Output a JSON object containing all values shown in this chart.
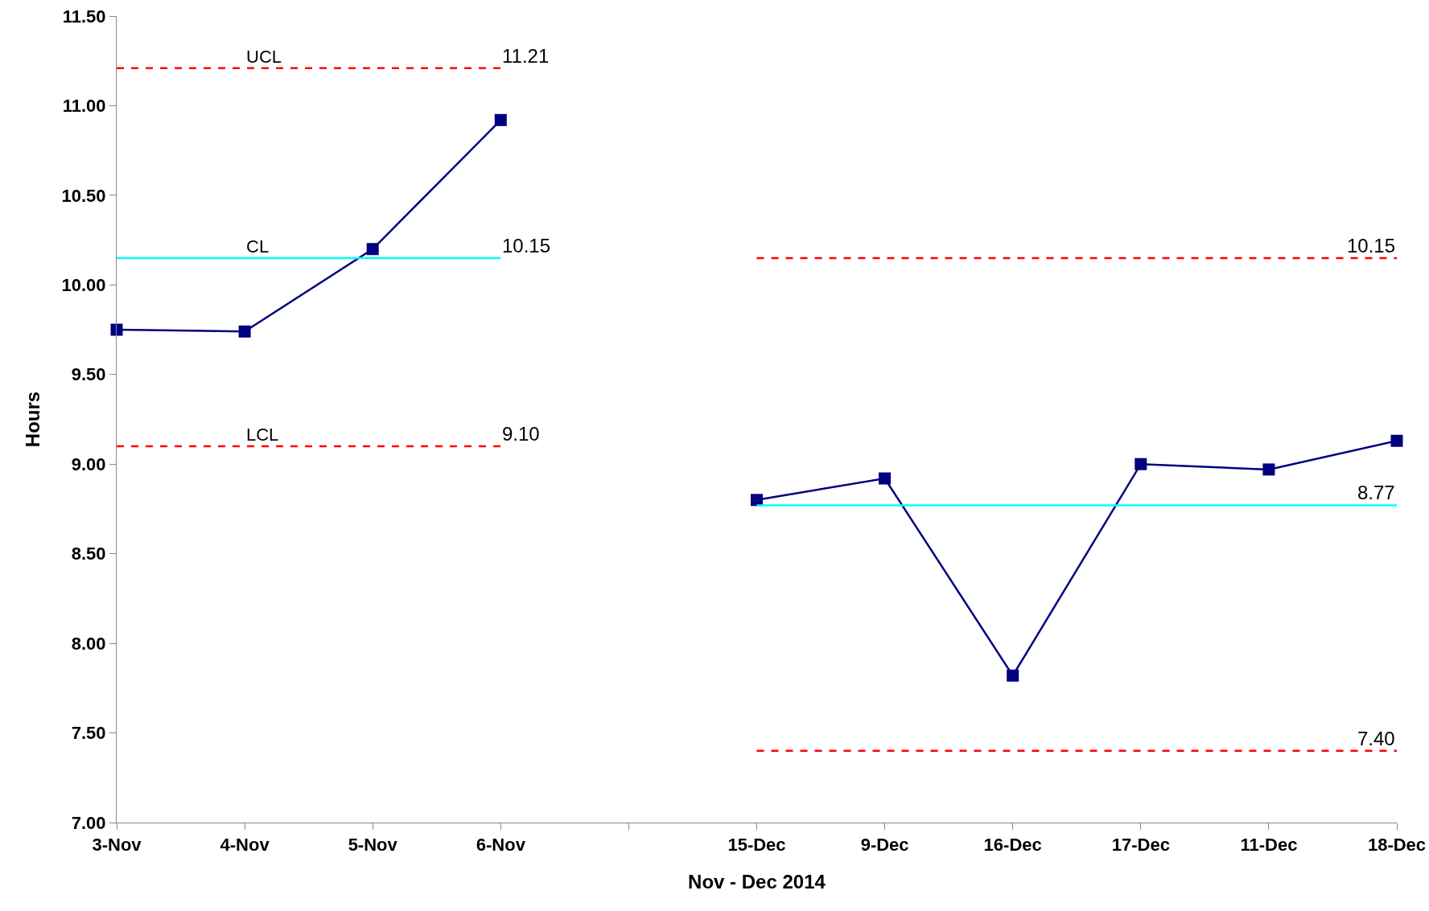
{
  "chart_data": {
    "type": "line",
    "xlabel": "Nov - Dec 2014",
    "ylabel": "Hours",
    "categories": [
      "3-Nov",
      "4-Nov",
      "5-Nov",
      "6-Nov",
      null,
      "15-Dec",
      "9-Dec",
      "16-Dec",
      "17-Dec",
      "11-Dec",
      "18-Dec"
    ],
    "series": [
      {
        "color": "#000080",
        "marker": "square",
        "line_style": "solid",
        "values": [
          9.75,
          9.74,
          10.2,
          10.92,
          null,
          8.8,
          8.92,
          7.82,
          9.0,
          8.97,
          9.13
        ]
      },
      {
        "name": "UCL",
        "color": "#ff0000",
        "marker": "none",
        "line_style": "dashed",
        "values": [
          11.21,
          11.21,
          11.21,
          11.21,
          null,
          10.15,
          10.15,
          10.15,
          10.15,
          10.15,
          10.15
        ],
        "value_labels": [
          null,
          null,
          null,
          "11.21",
          null,
          null,
          null,
          null,
          null,
          null,
          "10.15"
        ]
      },
      {
        "name": "CL",
        "color": "#00ffff",
        "marker": "none",
        "line_style": "solid",
        "values": [
          10.15,
          10.15,
          10.15,
          10.15,
          null,
          8.77,
          8.77,
          8.77,
          8.77,
          8.77,
          8.77
        ],
        "value_labels": [
          null,
          null,
          null,
          "10.15",
          null,
          null,
          null,
          null,
          null,
          null,
          "8.77"
        ]
      },
      {
        "name": "LCL",
        "color": "#ff0000",
        "marker": "none",
        "line_style": "dashed",
        "values": [
          9.1,
          9.1,
          9.1,
          9.1,
          null,
          7.4,
          7.4,
          7.4,
          7.4,
          7.4,
          7.4
        ],
        "value_labels": [
          null,
          null,
          null,
          "9.10",
          null,
          null,
          null,
          null,
          null,
          null,
          "7.40"
        ]
      }
    ],
    "ylim": [
      7,
      11.5
    ],
    "yticks": [
      {
        "value": 7,
        "label": "7.00"
      },
      {
        "value": 7.5,
        "label": "7.50"
      },
      {
        "value": 8,
        "label": "8.00"
      },
      {
        "value": 8.5,
        "label": "8.50"
      },
      {
        "value": 9,
        "label": "9.00"
      },
      {
        "value": 9.5,
        "label": "9.50"
      },
      {
        "value": 10,
        "label": "10.00"
      },
      {
        "value": 10.5,
        "label": "10.50"
      },
      {
        "value": 11,
        "label": "11.00"
      },
      {
        "value": 11.5,
        "label": "11.50"
      }
    ],
    "grid": false,
    "legend": false
  }
}
